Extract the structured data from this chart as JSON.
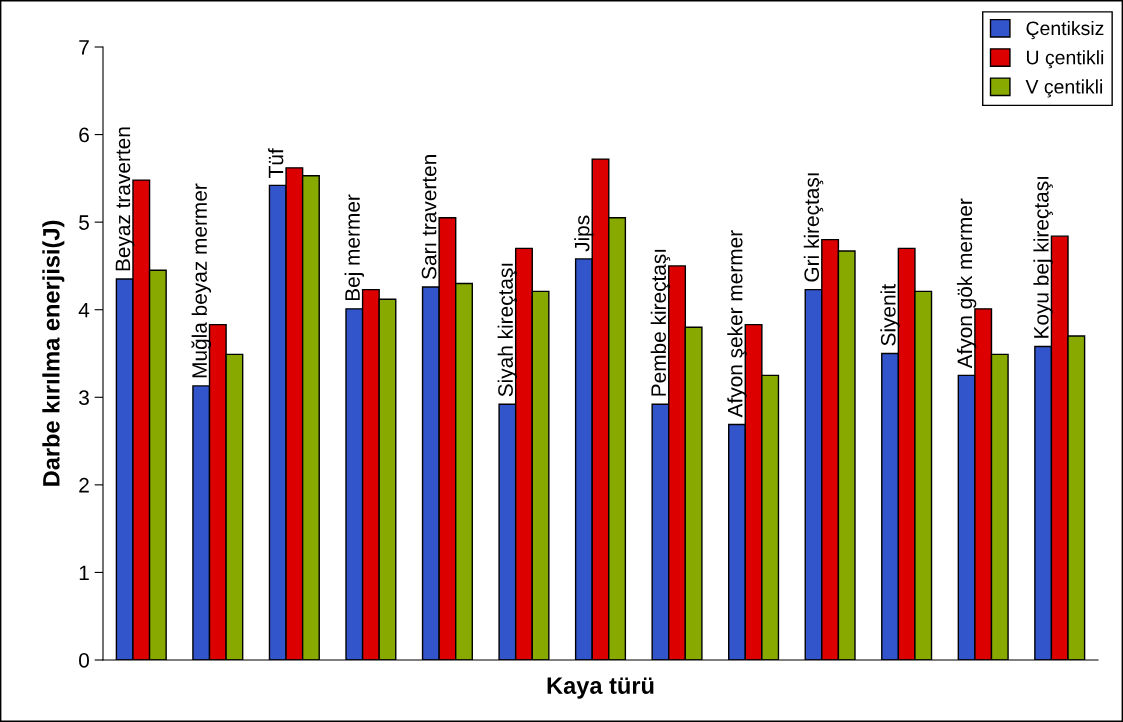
{
  "chart_data": {
    "type": "bar",
    "xlabel": "Kaya türü",
    "ylabel": "Darbe kırılma enerjisi(J)",
    "categories": [
      "Beyaz traverten",
      "Muğla beyaz mermer",
      "Tüf",
      "Bej mermer",
      "Sarı traverten",
      "Siyah kireçtaşı",
      "Jips",
      "Pembe kireçtaşı",
      "Afyon şeker mermer",
      "Gri kireçtaşı",
      "Siyenit",
      "Afyon gök mermer",
      "Koyu bej kireçtaşı"
    ],
    "series": [
      {
        "name": "Çentiksiz",
        "color": "#3355cc",
        "values": [
          4.35,
          3.13,
          5.42,
          4.01,
          4.26,
          2.92,
          4.58,
          2.92,
          2.69,
          4.23,
          3.5,
          3.25,
          3.58
        ]
      },
      {
        "name": "U çentikli",
        "color": "#dd0000",
        "values": [
          5.48,
          3.83,
          5.62,
          4.23,
          5.05,
          4.7,
          5.72,
          4.5,
          3.83,
          4.8,
          4.7,
          4.01,
          4.84
        ]
      },
      {
        "name": "V çentikli",
        "color": "#88aa00",
        "values": [
          4.45,
          3.49,
          5.53,
          4.12,
          4.3,
          4.21,
          5.05,
          3.8,
          3.25,
          4.67,
          4.21,
          3.49,
          3.7
        ]
      }
    ],
    "ylim": [
      0,
      7
    ],
    "yticks": [
      0,
      1,
      2,
      3,
      4,
      5,
      6,
      7
    ],
    "grid": false,
    "legend": "top right"
  }
}
